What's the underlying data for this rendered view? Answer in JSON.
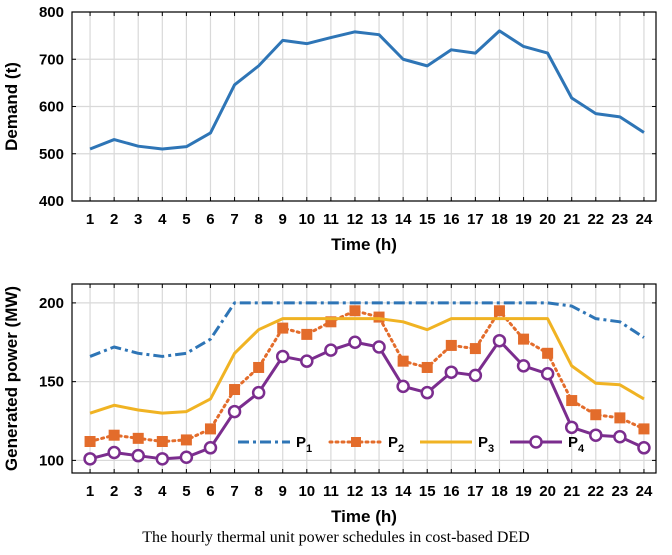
{
  "caption": "The hourly thermal unit power schedules in cost-based DED",
  "chart_data": [
    {
      "type": "line",
      "xlabel": "Time (h)",
      "ylabel": "Demand (t)",
      "x": [
        1,
        2,
        3,
        4,
        5,
        6,
        7,
        8,
        9,
        10,
        11,
        12,
        13,
        14,
        15,
        16,
        17,
        18,
        19,
        20,
        21,
        22,
        23,
        24
      ],
      "xticks": [
        "1",
        "2",
        "3",
        "4",
        "5",
        "6",
        "7",
        "8",
        "9",
        "10",
        "11",
        "12",
        "13",
        "14",
        "15",
        "16",
        "17",
        "18",
        "19",
        "20",
        "21",
        "22",
        "23",
        "24"
      ],
      "ylim": [
        400,
        800
      ],
      "yticks": [
        "400",
        "500",
        "600",
        "700",
        "800"
      ],
      "grid": true,
      "series": [
        {
          "name": "",
          "color": "#2e75b6",
          "values": [
            510,
            530,
            516,
            510,
            515,
            544,
            646,
            686,
            740,
            733,
            746,
            758,
            752,
            700,
            686,
            720,
            713,
            760,
            727,
            713,
            618,
            585,
            578,
            545
          ]
        }
      ]
    },
    {
      "type": "line",
      "xlabel": "Time (h)",
      "ylabel": "Generated power (MW)",
      "x": [
        1,
        2,
        3,
        4,
        5,
        6,
        7,
        8,
        9,
        10,
        11,
        12,
        13,
        14,
        15,
        16,
        17,
        18,
        19,
        20,
        21,
        22,
        23,
        24
      ],
      "xticks": [
        "1",
        "2",
        "3",
        "4",
        "5",
        "6",
        "7",
        "8",
        "9",
        "10",
        "11",
        "12",
        "13",
        "14",
        "15",
        "16",
        "17",
        "18",
        "19",
        "20",
        "21",
        "22",
        "23",
        "24"
      ],
      "ylim": [
        92,
        212
      ],
      "yticks": [
        "100",
        "150",
        "200"
      ],
      "grid": true,
      "legend": "bottom-center",
      "series": [
        {
          "name": "P",
          "sub": "1",
          "color": "#2e75b6",
          "style": "dashdot",
          "values": [
            166,
            172,
            168,
            166,
            168,
            177,
            200,
            200,
            200,
            200,
            200,
            200,
            200,
            200,
            200,
            200,
            200,
            200,
            200,
            200,
            198,
            190,
            188,
            178
          ]
        },
        {
          "name": "P",
          "sub": "2",
          "color": "#e36c2b",
          "style": "dotted-square",
          "values": [
            112,
            116,
            114,
            112,
            113,
            120,
            145,
            159,
            184,
            180,
            188,
            195,
            191,
            163,
            159,
            173,
            171,
            195,
            177,
            168,
            138,
            129,
            127,
            120
          ]
        },
        {
          "name": "P",
          "sub": "3",
          "color": "#f0b323",
          "style": "solid",
          "values": [
            130,
            135,
            132,
            130,
            131,
            139,
            168,
            183,
            190,
            190,
            190,
            190,
            190,
            188,
            183,
            190,
            190,
            190,
            190,
            190,
            160,
            149,
            148,
            139
          ]
        },
        {
          "name": "P",
          "sub": "4",
          "color": "#7b2d8e",
          "style": "solid-circle",
          "values": [
            101,
            105,
            103,
            101,
            102,
            108,
            131,
            143,
            166,
            163,
            170,
            175,
            172,
            147,
            143,
            156,
            154,
            176,
            160,
            155,
            121,
            116,
            115,
            108
          ]
        }
      ]
    }
  ]
}
